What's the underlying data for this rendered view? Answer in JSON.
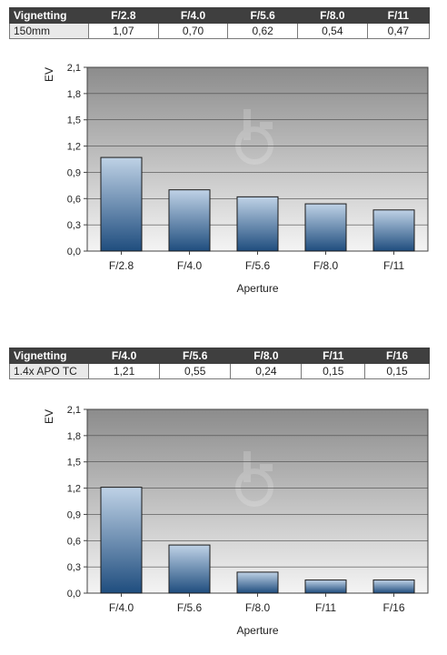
{
  "colors": {
    "bar_top": "#bfd2e6",
    "bar_bottom": "#1f4d7e",
    "plot_top": "#8c8c8c",
    "plot_bottom": "#f4f4f4"
  },
  "tables": [
    {
      "header": [
        "Vignetting",
        "F/2.8",
        "F/4.0",
        "F/5.6",
        "F/8.0",
        "F/11"
      ],
      "row": [
        "150mm",
        "1,07",
        "0,70",
        "0,62",
        "0,54",
        "0,47"
      ]
    },
    {
      "header": [
        "Vignetting",
        "F/4.0",
        "F/5.6",
        "F/8.0",
        "F/11",
        "F/16"
      ],
      "row": [
        "1.4x APO TC",
        "1,21",
        "0,55",
        "0,24",
        "0,15",
        "0,15"
      ]
    }
  ],
  "chart_data": [
    {
      "type": "bar",
      "categories": [
        "F/2.8",
        "F/4.0",
        "F/5.6",
        "F/8.0",
        "F/11"
      ],
      "values": [
        1.07,
        0.7,
        0.62,
        0.54,
        0.47
      ],
      "xlabel": "Aperture",
      "ylabel": "EV",
      "ylim": [
        0,
        2.1
      ],
      "yticks": [
        "0,0",
        "0,3",
        "0,6",
        "0,9",
        "1,2",
        "1,5",
        "1,8",
        "2,1"
      ],
      "grid": true
    },
    {
      "type": "bar",
      "categories": [
        "F/4.0",
        "F/5.6",
        "F/8.0",
        "F/11",
        "F/16"
      ],
      "values": [
        1.21,
        0.55,
        0.24,
        0.15,
        0.15
      ],
      "xlabel": "Aperture",
      "ylabel": "EV",
      "ylim": [
        0,
        2.1
      ],
      "yticks": [
        "0,0",
        "0,3",
        "0,6",
        "0,9",
        "1,2",
        "1,5",
        "1,8",
        "2,1"
      ],
      "grid": true
    }
  ]
}
